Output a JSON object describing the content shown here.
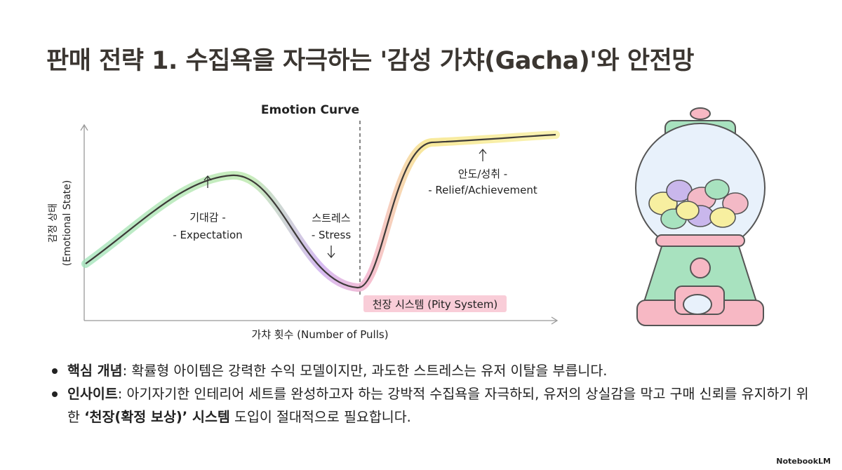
{
  "title": "판매 전략 1. 수집욕을 자극하는 '감성 가챠(Gacha)'와 안전망",
  "diagram": {
    "title": "Emotion Curve",
    "y_label": [
      "감정 상태",
      "(Emotional State)"
    ],
    "x_label": "가챠 횟수 (Number of Pulls)",
    "annotations": [
      {
        "lines": [
          "기대감 -",
          "- Expectation"
        ]
      },
      {
        "lines": [
          "스트레스",
          "- Stress"
        ]
      },
      {
        "lines": [
          "안도/성취 -",
          "- Relief/Achievement"
        ]
      }
    ],
    "pity": "천장 시스템 (Pity System)"
  },
  "bullets": [
    {
      "label": "핵심 개념",
      "text": ": 확률형 아이템은 강력한 수익 모델이지만, 과도한 스트레스는 유저 이탈을 부릅니다."
    },
    {
      "label": "인사이트",
      "text": ": 아기자기한 인테리어 세트를 완성하고자 하는 강박적 수집욕을 자극하되, 유저의 상실감을 막고 구매 신뢰를 유지하기 위한 ",
      "emphasis": "‘천장(확정 보상)’ 시스템",
      "tail": " 도입이 절대적으로 필요합니다."
    }
  ],
  "footer": "NotebookLM"
}
